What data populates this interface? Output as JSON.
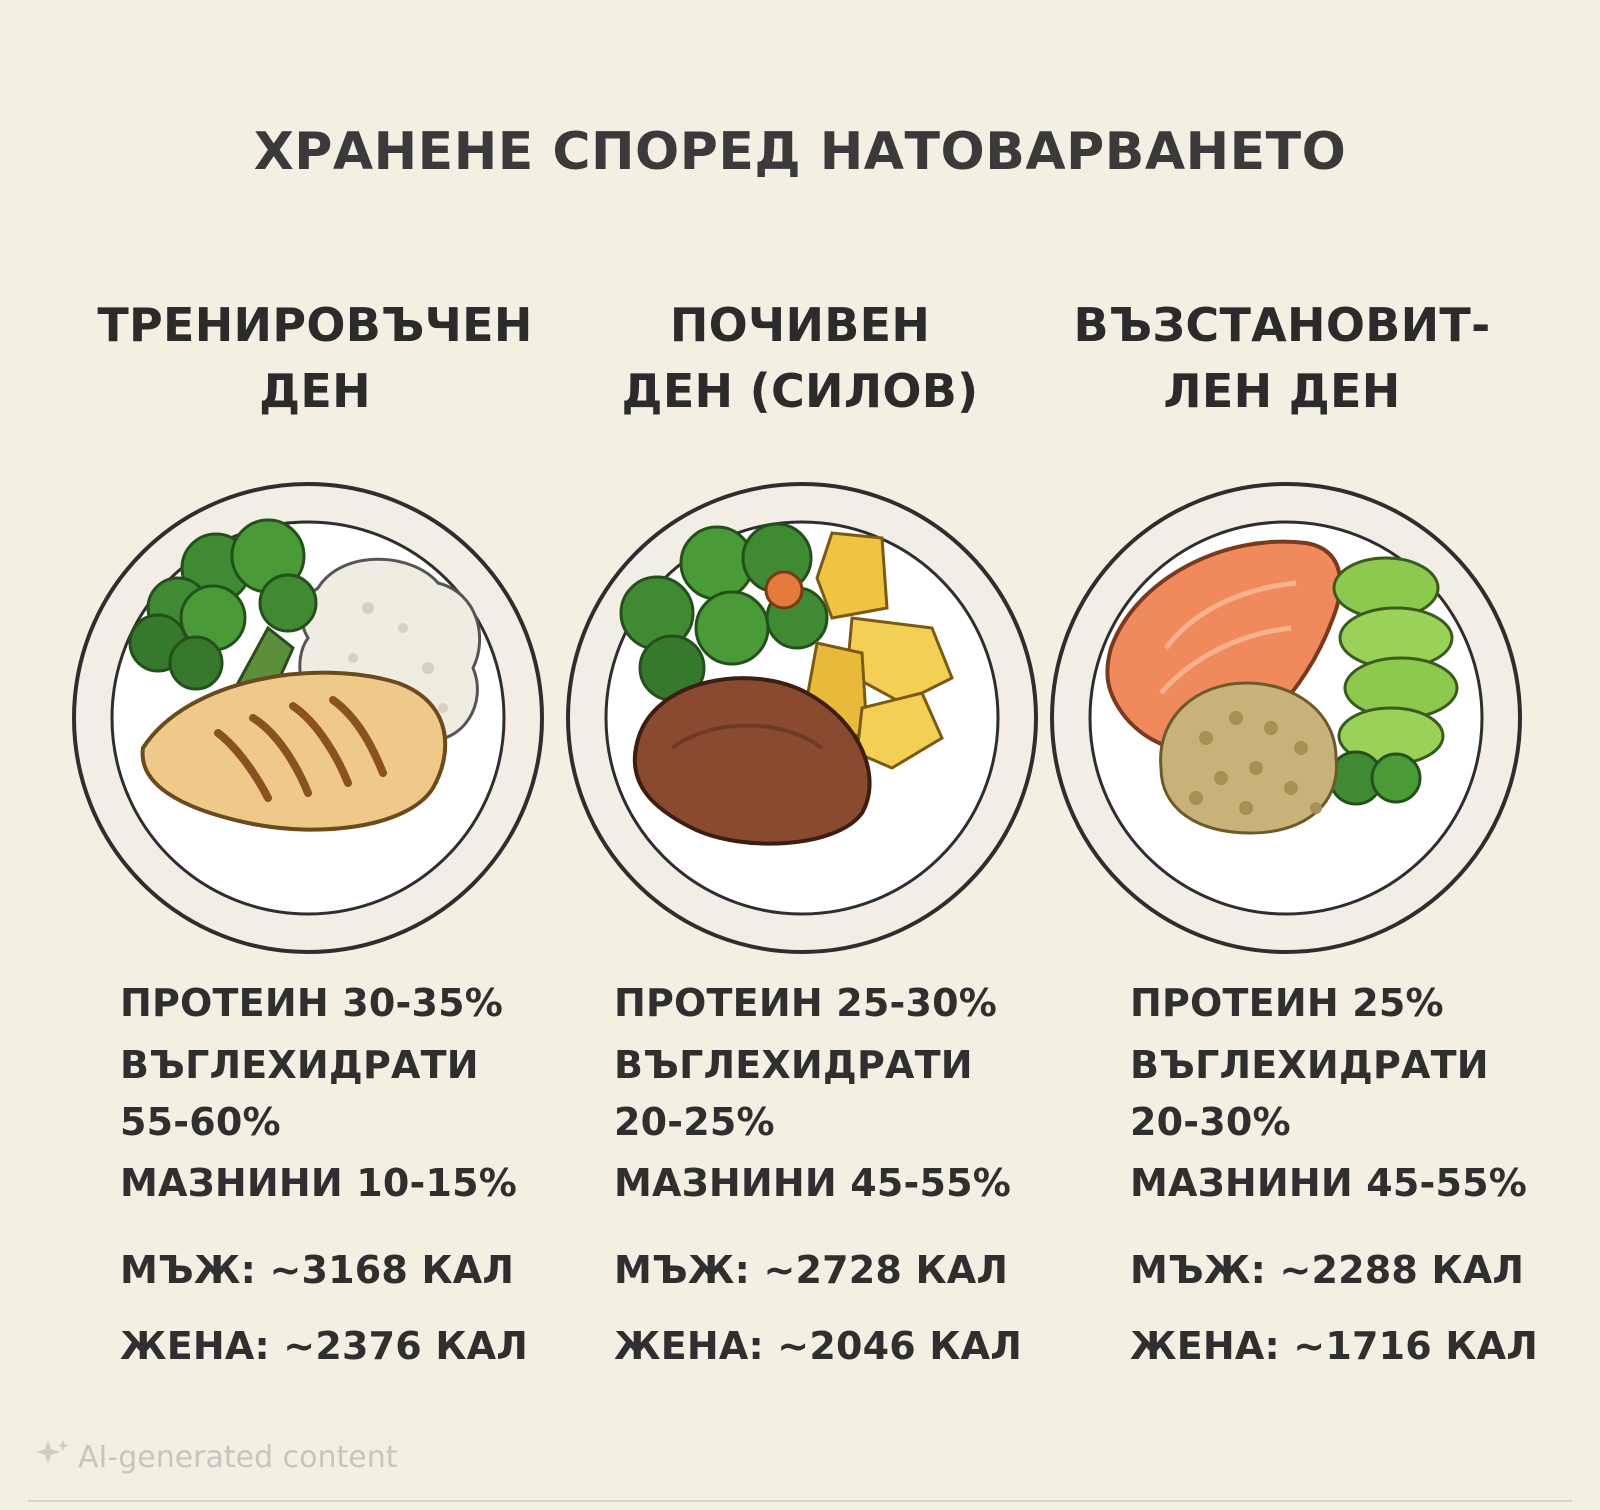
{
  "title": "ХРАНЕНЕ СПОРЕД НАТОВАРВАНЕТО",
  "columns": [
    {
      "heading_line1": "ТРЕНИРОВЪЧЕН",
      "heading_line2": "ДЕН",
      "protein": "ПРОТЕИН 30-35%",
      "carbs_label": "ВЪГЛЕХИДРАТИ",
      "carbs_value": "55-60%",
      "fats": "МАЗНИНИ 10-15%",
      "male": "МЪЖ: ~3168 КАЛ",
      "female": "ЖЕНА: ~2376 КАЛ"
    },
    {
      "heading_line1": "ПОЧИВЕН",
      "heading_line2": "ДЕН (СИЛОВ)",
      "protein": "ПРОТЕИН 25-30%",
      "carbs_label": "ВЪГЛЕХИДРАТИ",
      "carbs_value": "20-25%",
      "fats": "МАЗНИНИ 45-55%",
      "male": "МЪЖ: ~2728 КАЛ",
      "female": "ЖЕНА: ~2046 КАЛ"
    },
    {
      "heading_line1": "ВЪЗСТАНОВИТ-",
      "heading_line2": "ЛЕН ДЕН",
      "protein": "ПРОТЕИН 25%",
      "carbs_label": "ВЪГЛЕХИДРАТИ",
      "carbs_value": "20-30%",
      "fats": "МАЗНИНИ 45-55%",
      "male": "МЪЖ: ~2288 КАЛ",
      "female": "ЖЕНА: ~1716 КАЛ"
    }
  ],
  "watermark": "AI-generated content",
  "colors": {
    "background": "#f4efe3",
    "text": "#2f2f2f",
    "plate_rim": "#ffffff",
    "plate_outline": "#333333"
  },
  "icons": [
    "chicken-breast-icon",
    "broccoli-icon",
    "rice-icon",
    "steak-icon",
    "potato-wedges-icon",
    "salmon-icon",
    "avocado-icon",
    "quinoa-icon",
    "sparkle-icon"
  ]
}
